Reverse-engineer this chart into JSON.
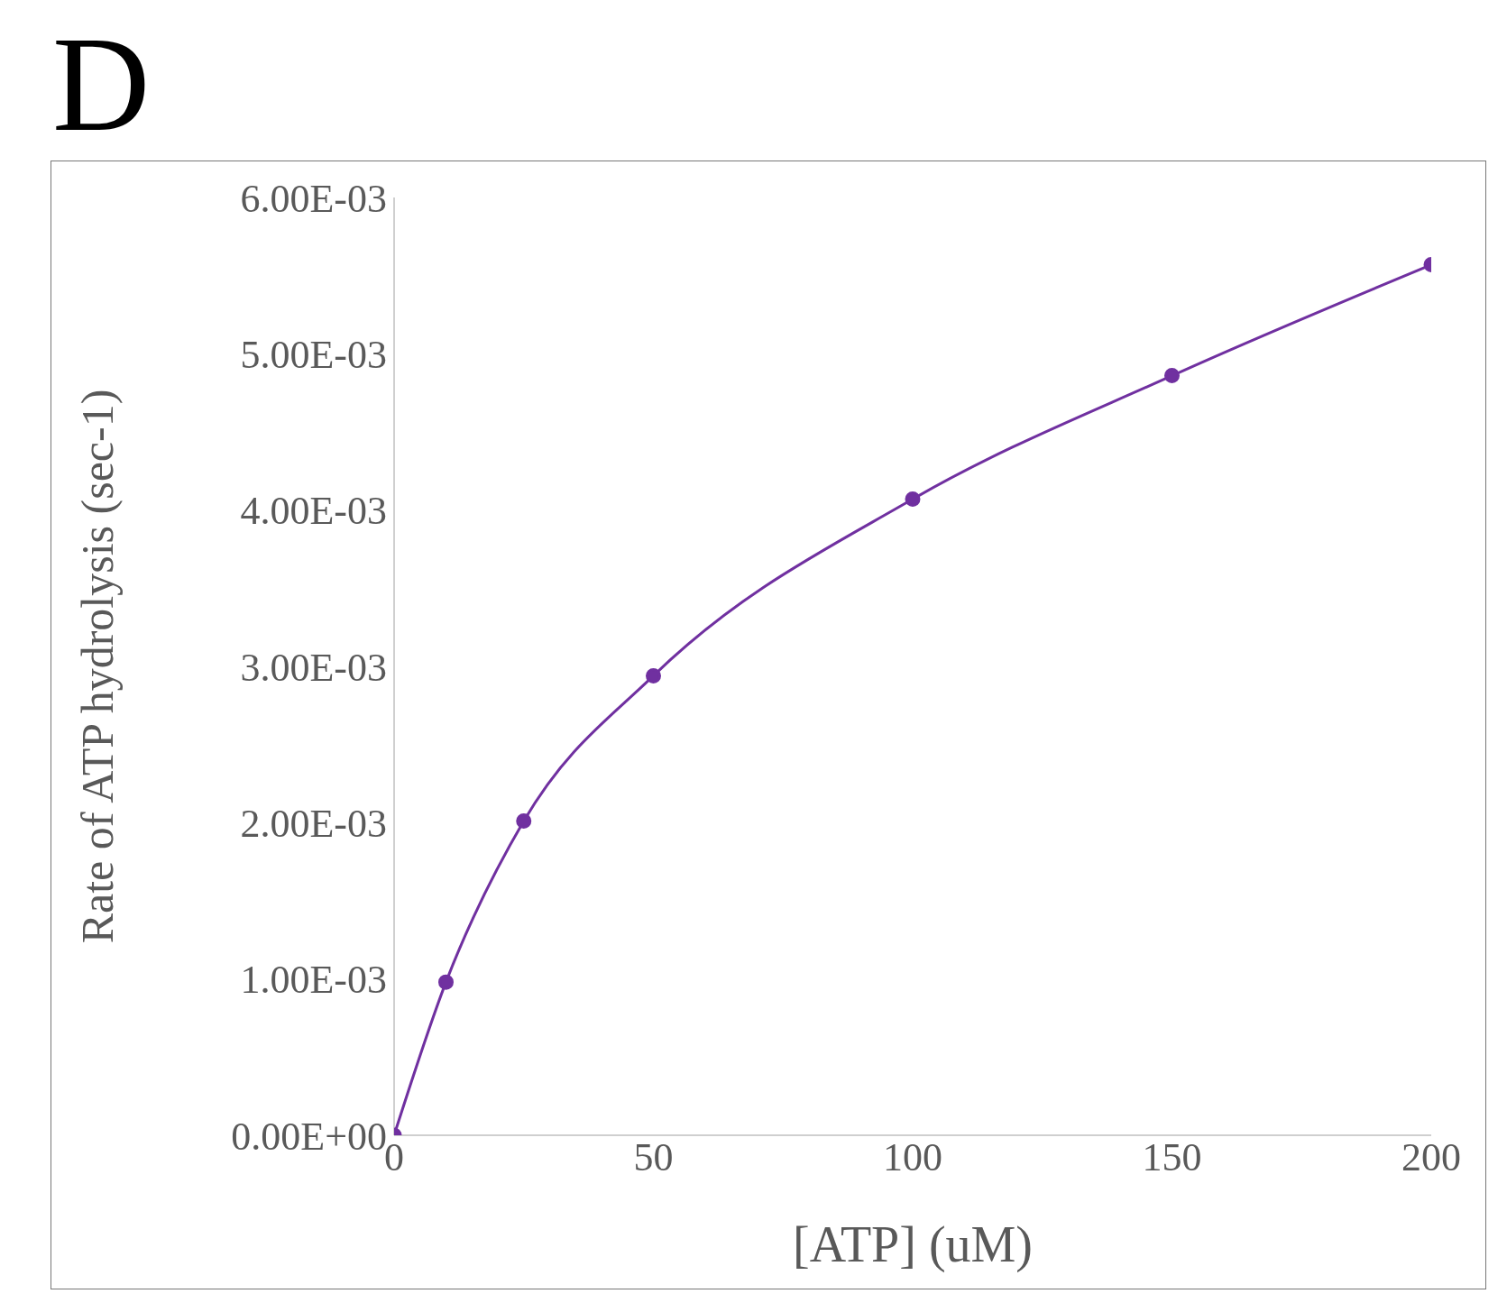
{
  "chart_data": {
    "type": "line",
    "title": "D",
    "xlabel": "[ATP] (uM)",
    "ylabel": "Rate of ATP hydrolysis (sec-1)",
    "x": [
      0,
      10,
      25,
      50,
      100,
      150,
      200
    ],
    "series": [
      {
        "color": "#7030a0",
        "values": [
          0,
          0.00098,
          0.00201,
          0.00294,
          0.00407,
          0.00486,
          0.00557
        ]
      }
    ],
    "xlim": [
      0,
      200
    ],
    "xticks": [
      0,
      50,
      100,
      150,
      200
    ],
    "ylim": [
      0,
      0.006
    ],
    "yticks": [
      {
        "value": 0,
        "label": "0.00E+00"
      },
      {
        "value": 0.001,
        "label": "1.00E-03"
      },
      {
        "value": 0.002,
        "label": "2.00E-03"
      },
      {
        "value": 0.003,
        "label": "3.00E-03"
      },
      {
        "value": 0.004,
        "label": "4.00E-03"
      },
      {
        "value": 0.005,
        "label": "5.00E-03"
      },
      {
        "value": 0.006,
        "label": "6.00E-03"
      }
    ],
    "grid": false,
    "legend": false,
    "marker": "circle",
    "line_style": "solid"
  }
}
